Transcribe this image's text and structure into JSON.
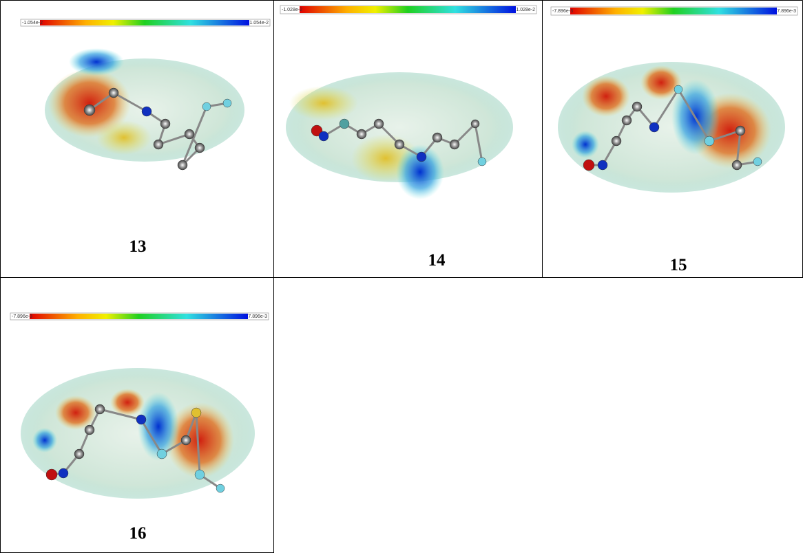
{
  "figure": {
    "cells": [
      {
        "label": "13",
        "scale_min": "-1.054e-2",
        "scale_max": "1.054e-2"
      },
      {
        "label": "14",
        "scale_min": "-1.028e-2",
        "scale_max": "1.028e-2"
      },
      {
        "label": "15",
        "scale_min": "-7.896e-3",
        "scale_max": "7.896e-3"
      },
      {
        "label": "16",
        "scale_min": "-7.896e-3",
        "scale_max": "7.896e-3"
      }
    ]
  }
}
